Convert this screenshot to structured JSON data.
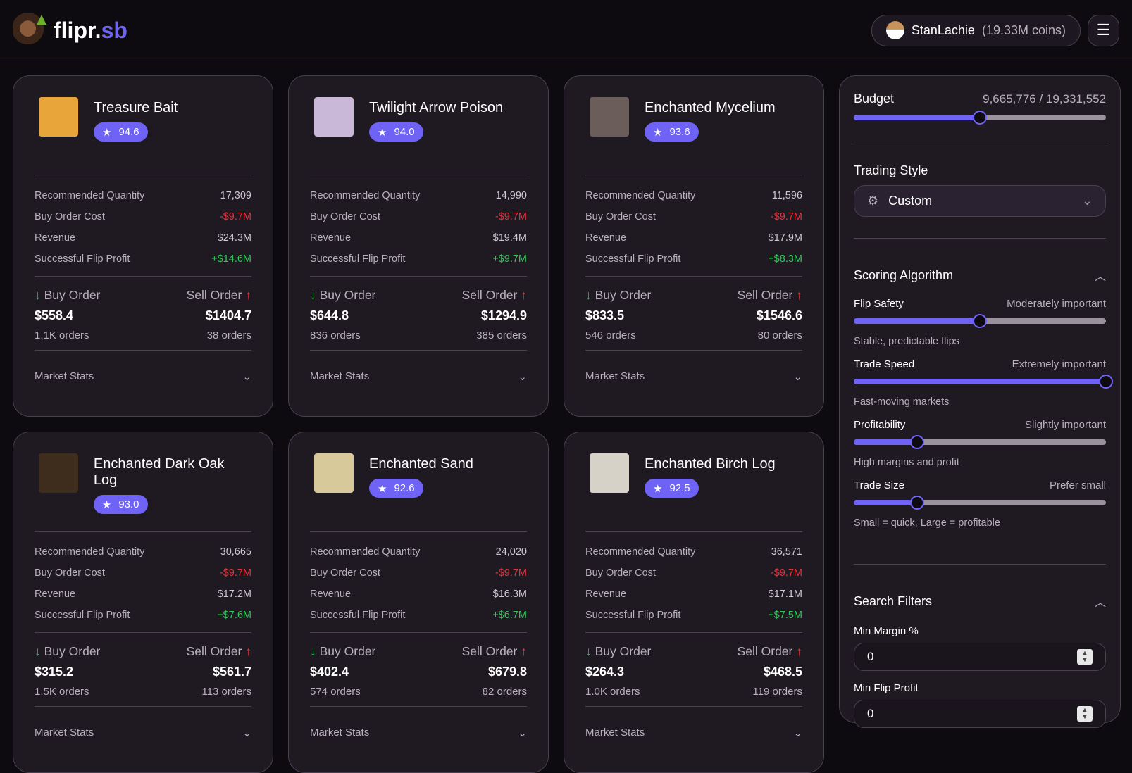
{
  "header": {
    "brand_main": "flipr.",
    "brand_accent": "sb",
    "username": "StanLachie",
    "coins": "(19.33M coins)"
  },
  "colors": {
    "accent": "#6e63f5",
    "negative": "#e5323c",
    "positive": "#2fc75a",
    "background": "#0e0b10",
    "card": "#1f1921"
  },
  "labels": {
    "rec_qty": "Recommended Quantity",
    "buy_cost": "Buy Order Cost",
    "revenue": "Revenue",
    "profit": "Successful Flip Profit",
    "buy_order": "Buy Order",
    "sell_order": "Sell Order",
    "market_stats": "Market Stats"
  },
  "cards": [
    {
      "name": "Treasure Bait",
      "score": "94.6",
      "qty": "17,309",
      "cost": "-$9.7M",
      "revenue": "$24.3M",
      "profit": "+$14.6M",
      "buy": "$558.4",
      "buy_orders": "1.1K orders",
      "sell": "$1404.7",
      "sell_orders": "38 orders",
      "icon": "treasure-bait",
      "color": "#e8a53a"
    },
    {
      "name": "Twilight Arrow Poison",
      "score": "94.0",
      "qty": "14,990",
      "cost": "-$9.7M",
      "revenue": "$19.4M",
      "profit": "+$9.7M",
      "buy": "$644.8",
      "buy_orders": "836 orders",
      "sell": "$1294.9",
      "sell_orders": "385 orders",
      "icon": "potion-bottle",
      "color": "#c9b8d8"
    },
    {
      "name": "Enchanted Mycelium",
      "score": "93.6",
      "qty": "11,596",
      "cost": "-$9.7M",
      "revenue": "$17.9M",
      "profit": "+$8.3M",
      "buy": "$833.5",
      "buy_orders": "546 orders",
      "sell": "$1546.6",
      "sell_orders": "80 orders",
      "icon": "mycelium-block",
      "color": "#6b5d5a"
    },
    {
      "name": "Enchanted Dark Oak Log",
      "score": "93.0",
      "qty": "30,665",
      "cost": "-$9.7M",
      "revenue": "$17.2M",
      "profit": "+$7.6M",
      "buy": "$315.2",
      "buy_orders": "1.5K orders",
      "sell": "$561.7",
      "sell_orders": "113 orders",
      "icon": "dark-oak-log",
      "color": "#3e2d1c"
    },
    {
      "name": "Enchanted Sand",
      "score": "92.6",
      "qty": "24,020",
      "cost": "-$9.7M",
      "revenue": "$16.3M",
      "profit": "+$6.7M",
      "buy": "$402.4",
      "buy_orders": "574 orders",
      "sell": "$679.8",
      "sell_orders": "82 orders",
      "icon": "sand-block",
      "color": "#d8c99a"
    },
    {
      "name": "Enchanted Birch Log",
      "score": "92.5",
      "qty": "36,571",
      "cost": "-$9.7M",
      "revenue": "$17.1M",
      "profit": "+$7.5M",
      "buy": "$264.3",
      "buy_orders": "1.0K orders",
      "sell": "$468.5",
      "sell_orders": "119 orders",
      "icon": "birch-log",
      "color": "#d6d2c8"
    }
  ],
  "sidebar": {
    "budget_label": "Budget",
    "budget_value": "9,665,776 / 19,331,552",
    "budget_fraction": 0.5,
    "trading_style_label": "Trading Style",
    "trading_style_value": "Custom",
    "scoring_title": "Scoring Algorithm",
    "sliders": [
      {
        "label": "Flip Safety",
        "level": "Moderately important",
        "note": "Stable, predictable flips",
        "fraction": 0.5
      },
      {
        "label": "Trade Speed",
        "level": "Extremely important",
        "note": "Fast-moving markets",
        "fraction": 1.0
      },
      {
        "label": "Profitability",
        "level": "Slightly important",
        "note": "High margins and profit",
        "fraction": 0.25
      },
      {
        "label": "Trade Size",
        "level": "Prefer small",
        "note": "Small = quick, Large = profitable",
        "fraction": 0.25
      }
    ],
    "filters_title": "Search Filters",
    "min_margin_label": "Min Margin %",
    "min_margin_value": "0",
    "min_profit_label": "Min Flip Profit",
    "min_profit_value": "0"
  }
}
